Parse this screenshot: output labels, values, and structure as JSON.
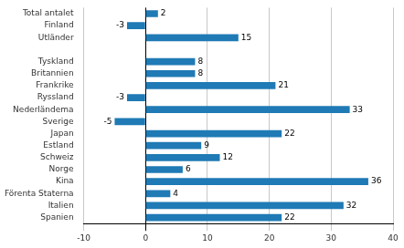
{
  "chart_data": {
    "type": "bar",
    "orientation": "horizontal",
    "categories": [
      "Total antalet",
      "Finland",
      "Utländer",
      null,
      "Tyskland",
      "Britannien",
      "Frankrike",
      "Ryssland",
      "Nederländema",
      "Sverige",
      "Japan",
      "Estland",
      "Schweiz",
      "Norge",
      "Kina",
      "Förenta Staterna",
      "Italien",
      "Spanien"
    ],
    "values": [
      2,
      -3,
      15,
      null,
      8,
      8,
      21,
      -3,
      33,
      -5,
      22,
      9,
      12,
      6,
      36,
      4,
      32,
      22
    ],
    "color": "#1f7ab5",
    "xlim": [
      -10,
      40
    ],
    "xticks": [
      -10,
      0,
      10,
      20,
      30,
      40
    ],
    "grid": true,
    "data_labels": true
  }
}
